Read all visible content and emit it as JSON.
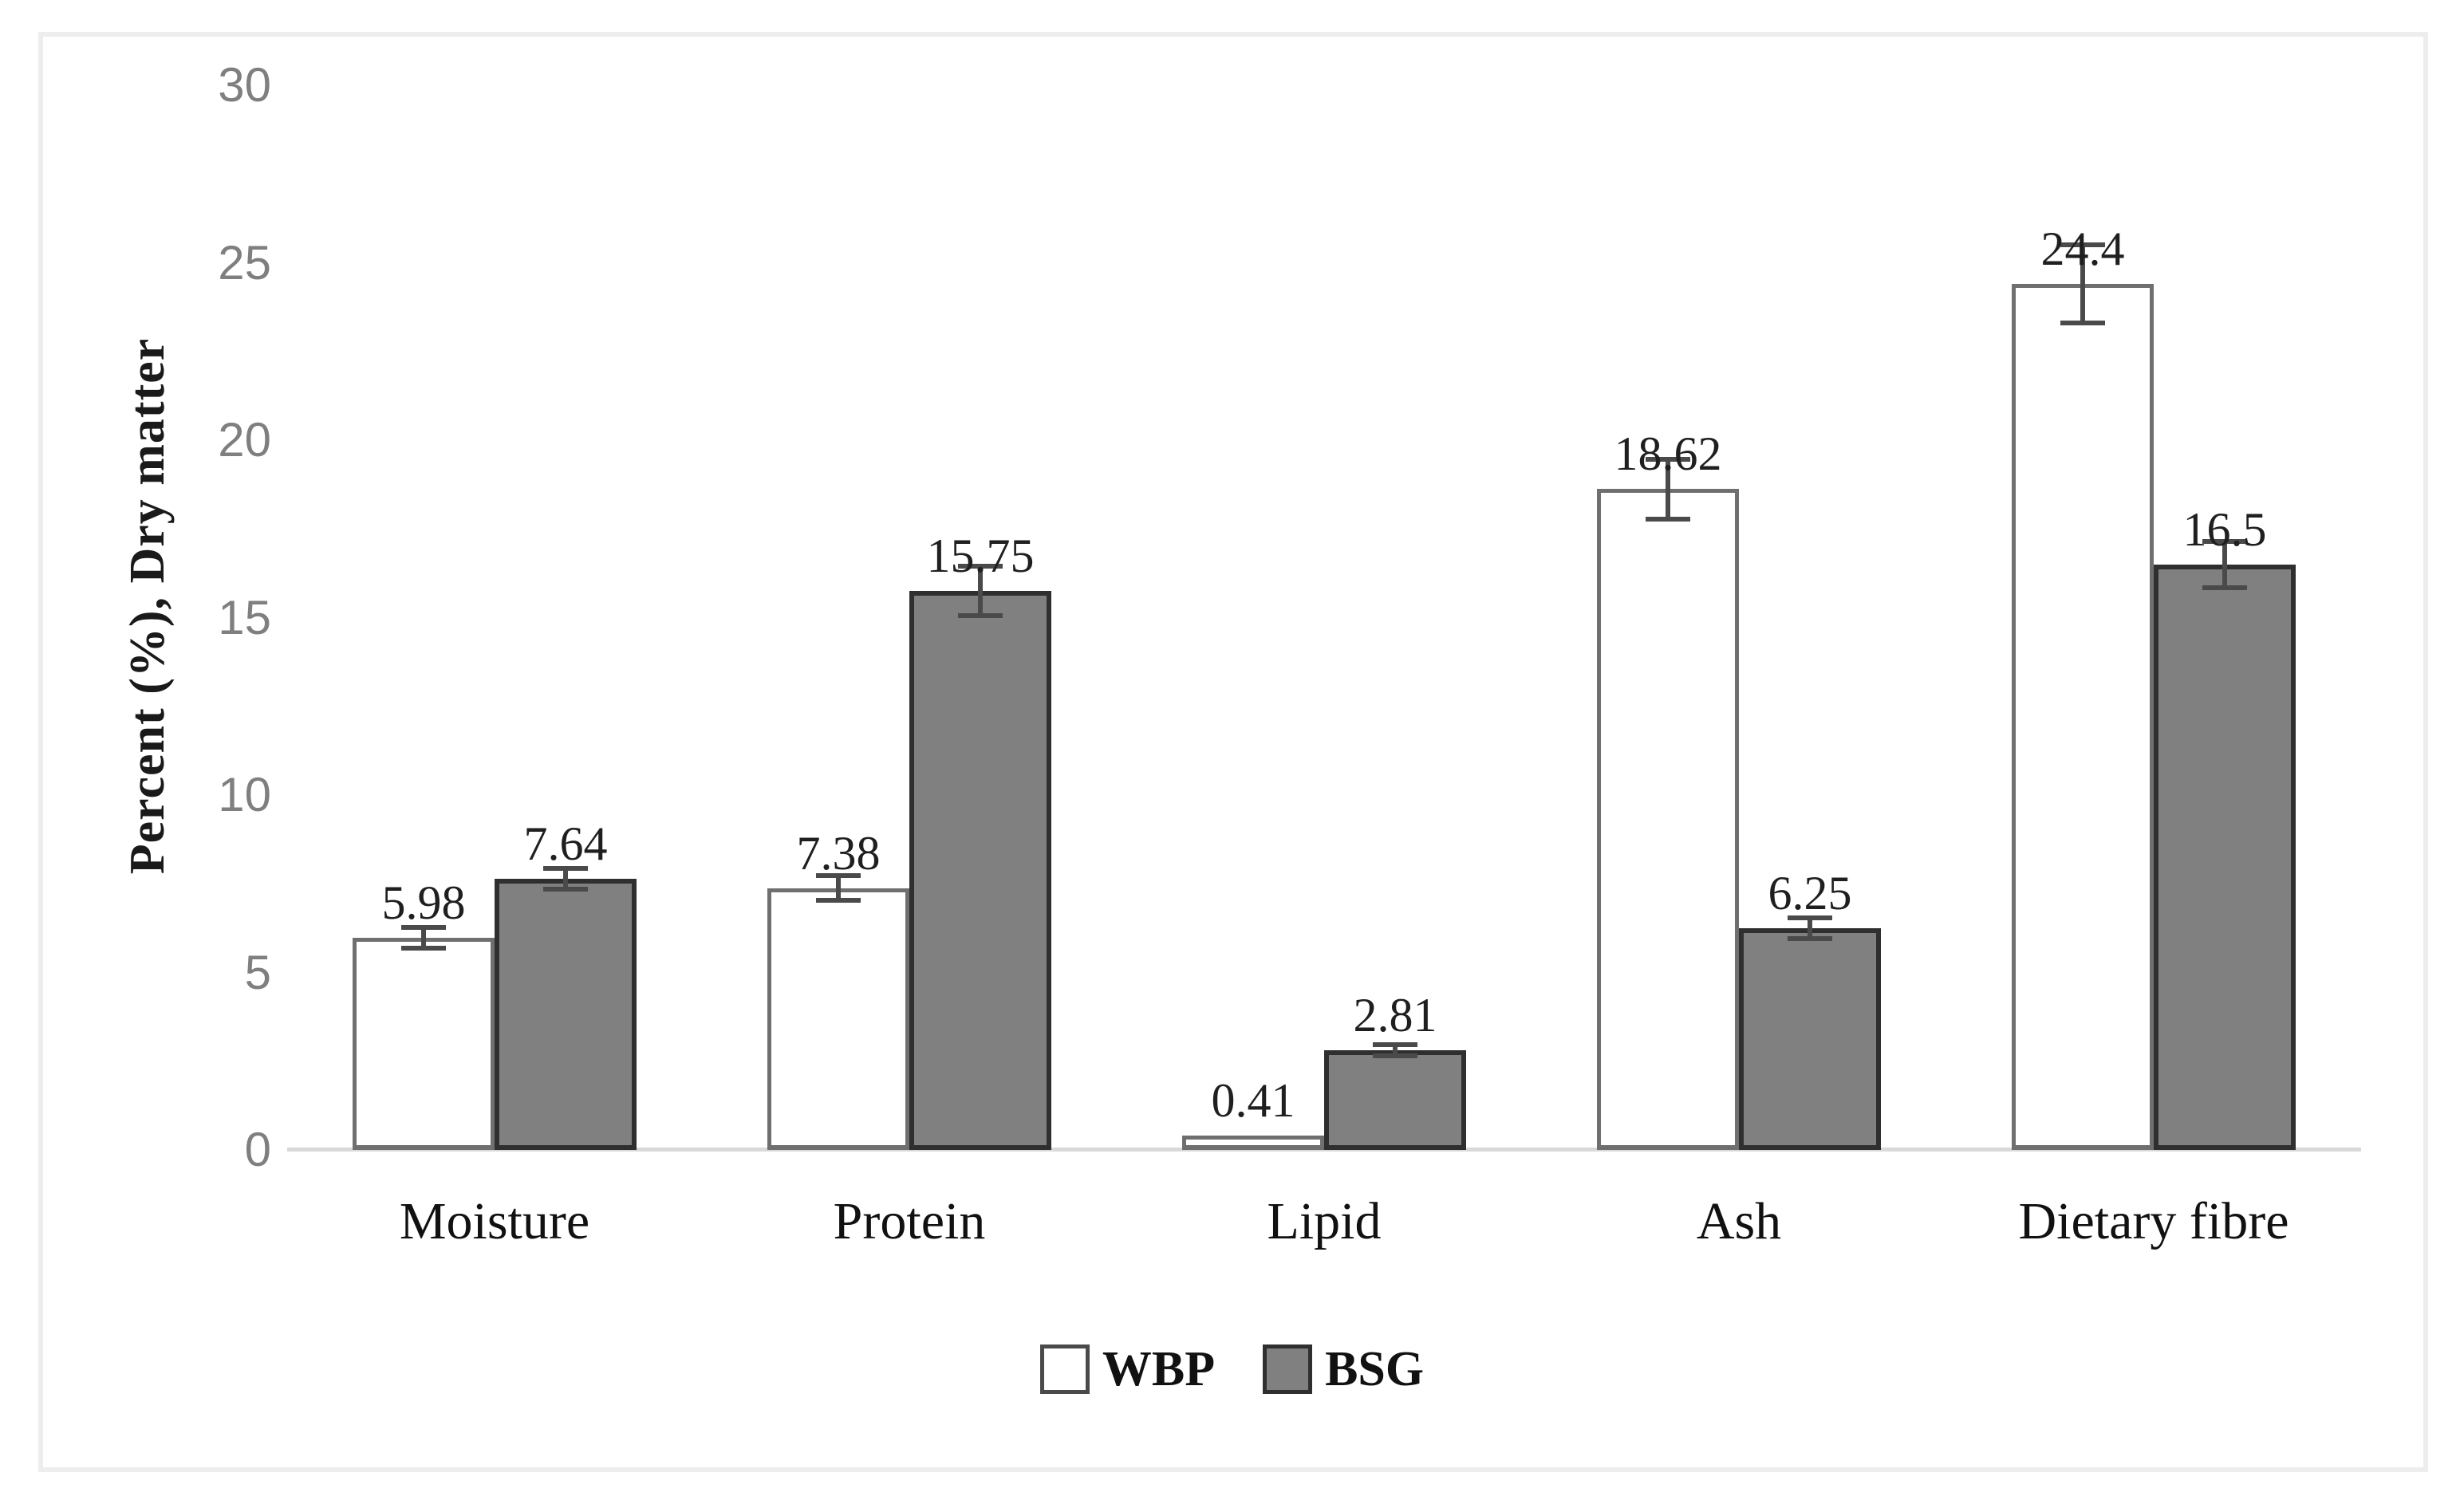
{
  "figure": {
    "background_color": "#ffffff",
    "frame_border_color": "#ededed"
  },
  "chart_data": {
    "type": "bar",
    "title": "",
    "xlabel": "",
    "ylabel": "Percent (%), Dry matter",
    "ylim": [
      0,
      30
    ],
    "yticks": [
      0,
      5,
      10,
      15,
      20,
      25,
      30
    ],
    "grid": false,
    "legend_position": "bottom",
    "categories": [
      "Moisture",
      "Protein",
      "Lipid",
      "Ash",
      "Dietary fibre"
    ],
    "series": [
      {
        "name": "WBP",
        "fill": "#ffffff",
        "border": "#6f6f6f",
        "values": [
          5.98,
          7.38,
          0.41,
          18.62,
          24.4
        ],
        "value_labels": [
          "5.98",
          "7.38",
          "0.41",
          "18.62",
          "24.4"
        ],
        "errors": [
          0.3,
          0.35,
          0.05,
          0.85,
          1.1
        ]
      },
      {
        "name": "BSG",
        "fill": "#808080",
        "border": "#2f2f2f",
        "values": [
          7.64,
          15.75,
          2.81,
          6.25,
          16.5
        ],
        "value_labels": [
          "7.64",
          "15.75",
          "2.81",
          "6.25",
          "16.5"
        ],
        "errors": [
          0.3,
          0.7,
          0.15,
          0.3,
          0.65
        ]
      }
    ],
    "error_bar_color": "#4a4a4a",
    "axis_line_color": "#d9d9d9",
    "tick_label_color": "#7f7f7f"
  }
}
